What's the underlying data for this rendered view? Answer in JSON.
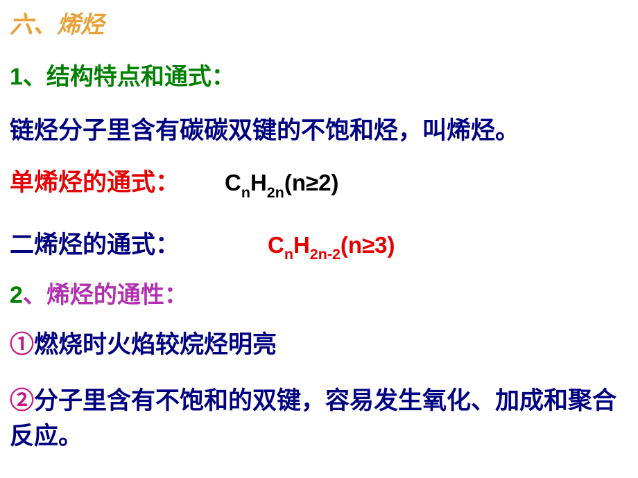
{
  "colors": {
    "orange": "#e8a23a",
    "green": "#008000",
    "blue_dark": "#000080",
    "red": "#e60000",
    "purple": "#b030b0",
    "magenta": "#c71585",
    "black": "#000000"
  },
  "title": "六、烯烃",
  "section1": {
    "number": "1",
    "label": "、结构特点和通式："
  },
  "definition": "链烃分子里含有碳碳双键的不饱和烃，叫烯烃。",
  "formula1_label": "单烯烃的通式：",
  "formula1": {
    "prefix": "C",
    "sub1": "n",
    "mid": "H",
    "sub2": "2n",
    "suffix": "(n≥2)"
  },
  "formula2_label": "二烯烃的通式：",
  "formula2": {
    "prefix": "C",
    "sub1": "n",
    "mid": "H",
    "sub2": "2n-2",
    "suffix": "(n≥3)"
  },
  "section2": {
    "number": "2",
    "label": "、烯烃的通性："
  },
  "point1": {
    "num": "①",
    "text": "燃烧时火焰较烷烃明亮"
  },
  "point2": {
    "num": "②",
    "text": "分子里含有不饱和的双键，容易发生氧化、加成和聚合反应。"
  }
}
